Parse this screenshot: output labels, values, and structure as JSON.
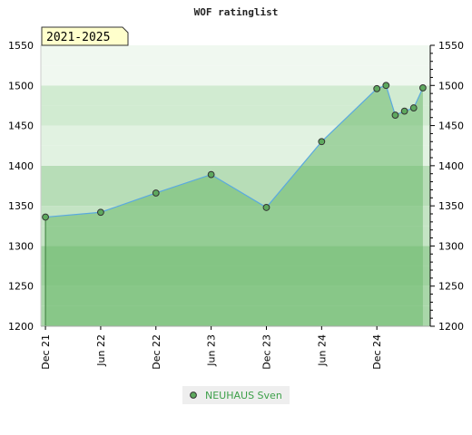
{
  "chart_data": {
    "type": "area",
    "title": "WOF ratinglist",
    "period_label": "2021-2025",
    "y_ticks": [
      1200,
      1250,
      1300,
      1350,
      1400,
      1450,
      1500,
      1550
    ],
    "ylim": [
      1200,
      1550
    ],
    "x_ticks": [
      {
        "label": "Dec 21",
        "x": 0
      },
      {
        "label": "Jun 22",
        "x": 6
      },
      {
        "label": "Dec 22",
        "x": 12
      },
      {
        "label": "Jun 23",
        "x": 18
      },
      {
        "label": "Dec 23",
        "x": 24
      },
      {
        "label": "Jun 24",
        "x": 30
      },
      {
        "label": "Dec 24",
        "x": 36
      }
    ],
    "xlim": [
      -0.5,
      41.8
    ],
    "series": [
      {
        "name": "NEUHAUS Sven",
        "points": [
          {
            "x": 0,
            "y": 1336
          },
          {
            "x": 6,
            "y": 1342
          },
          {
            "x": 12,
            "y": 1366
          },
          {
            "x": 18,
            "y": 1389
          },
          {
            "x": 24,
            "y": 1348
          },
          {
            "x": 30,
            "y": 1430
          },
          {
            "x": 36,
            "y": 1496
          },
          {
            "x": 37,
            "y": 1500
          },
          {
            "x": 38,
            "y": 1463
          },
          {
            "x": 39,
            "y": 1468
          },
          {
            "x": 40,
            "y": 1472
          },
          {
            "x": 41,
            "y": 1497
          }
        ]
      }
    ],
    "grid": true,
    "legend_position": "bottom-center",
    "colors": {
      "line": "#5aa9e0",
      "marker": "#5ea95e",
      "area": "#6dba6d",
      "legend_text": "#3ea04a"
    }
  }
}
